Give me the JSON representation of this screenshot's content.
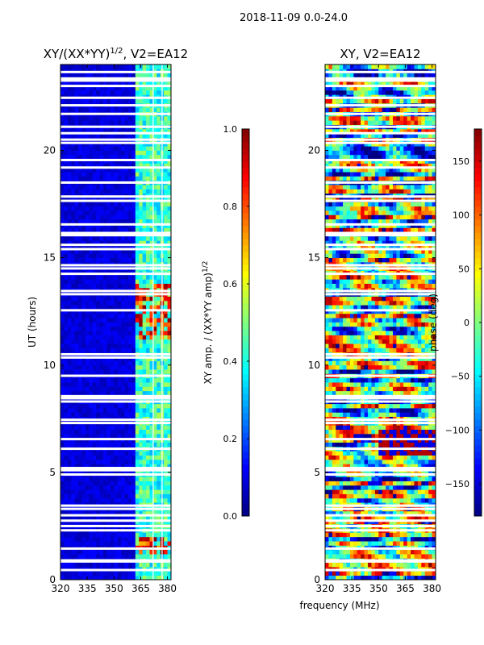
{
  "figure": {
    "suptitle": "2018-11-09 0.0-24.0",
    "shared_xlabel": "frequency (MHz)"
  },
  "chart_data": [
    {
      "type": "heatmap",
      "title_main": "XY/(XX*YY)",
      "title_sup": "1/2",
      "title_tail": ", V2=EA12",
      "xlabel": "",
      "ylabel": "UT (hours)",
      "xlim": [
        320,
        382
      ],
      "ylim": [
        0,
        24
      ],
      "xticks": [
        320,
        335,
        350,
        365,
        380
      ],
      "yticks": [
        0,
        5,
        10,
        15,
        20
      ],
      "quantity": "amplitude",
      "colorbar": {
        "label_main": "XY amp. / (XX*YY amp)",
        "label_sup": "1/2",
        "range": [
          0.0,
          1.0
        ],
        "ticks": [
          0.0,
          0.2,
          0.4,
          0.6,
          0.8,
          1.0
        ],
        "tick_labels": [
          "0.0",
          "0.2",
          "0.4",
          "0.6",
          "0.8",
          "1.0"
        ]
      },
      "colormap": "jet",
      "gap_hours": [
        0.45,
        0.85,
        0.9,
        1.45,
        2.3,
        2.5,
        2.75,
        3.0,
        3.3,
        3.45,
        4.9,
        5.1,
        5.2,
        6.1,
        6.55,
        7.3,
        7.45,
        8.3,
        8.45,
        8.55,
        9.5,
        10.35,
        10.5,
        12.55,
        13.3,
        13.45,
        14.25,
        14.5,
        14.65,
        15.4,
        15.6,
        16.05,
        16.15,
        16.55,
        17.65,
        17.85,
        18.5,
        19.2,
        19.55,
        20.35,
        20.5,
        20.8,
        21.1,
        21.7,
        22.1,
        22.45,
        23.0,
        23.25,
        23.35,
        23.65
      ],
      "bright_band_mhz": [
        362,
        382
      ],
      "high_amplitude_hours": [
        [
          1.1,
          1.9
        ],
        [
          11.2,
          13.9
        ]
      ]
    },
    {
      "type": "heatmap",
      "title_main": "XY, V2=EA12",
      "title_sup": "",
      "title_tail": "",
      "xlabel": "frequency (MHz)",
      "ylabel": "",
      "xlim": [
        320,
        382
      ],
      "ylim": [
        0,
        24
      ],
      "xticks": [
        320,
        335,
        350,
        365,
        380
      ],
      "yticks": [
        0,
        5,
        10,
        15,
        20
      ],
      "quantity": "phase",
      "colorbar": {
        "label_main": "phase (deg)",
        "label_sup": "",
        "range": [
          -180,
          180
        ],
        "ticks": [
          -150,
          -100,
          -50,
          0,
          50,
          100,
          150
        ],
        "tick_labels": [
          "−150",
          "−100",
          "−50",
          "0",
          "50",
          "100",
          "150"
        ]
      },
      "colormap": "jet",
      "gap_hours": [
        0.45,
        0.85,
        0.9,
        1.45,
        2.3,
        2.5,
        2.75,
        3.0,
        3.3,
        3.45,
        4.9,
        5.1,
        5.2,
        6.1,
        6.55,
        7.3,
        7.45,
        8.3,
        8.45,
        8.55,
        9.5,
        10.35,
        10.5,
        12.55,
        13.3,
        13.45,
        14.25,
        14.5,
        14.65,
        15.4,
        15.6,
        16.05,
        16.15,
        16.55,
        17.65,
        17.85,
        18.5,
        19.2,
        19.55,
        20.35,
        20.5,
        20.8,
        21.1,
        21.7,
        22.1,
        22.45,
        23.0,
        23.25,
        23.35,
        23.65
      ],
      "bright_band_mhz": [],
      "high_amplitude_hours": []
    }
  ]
}
